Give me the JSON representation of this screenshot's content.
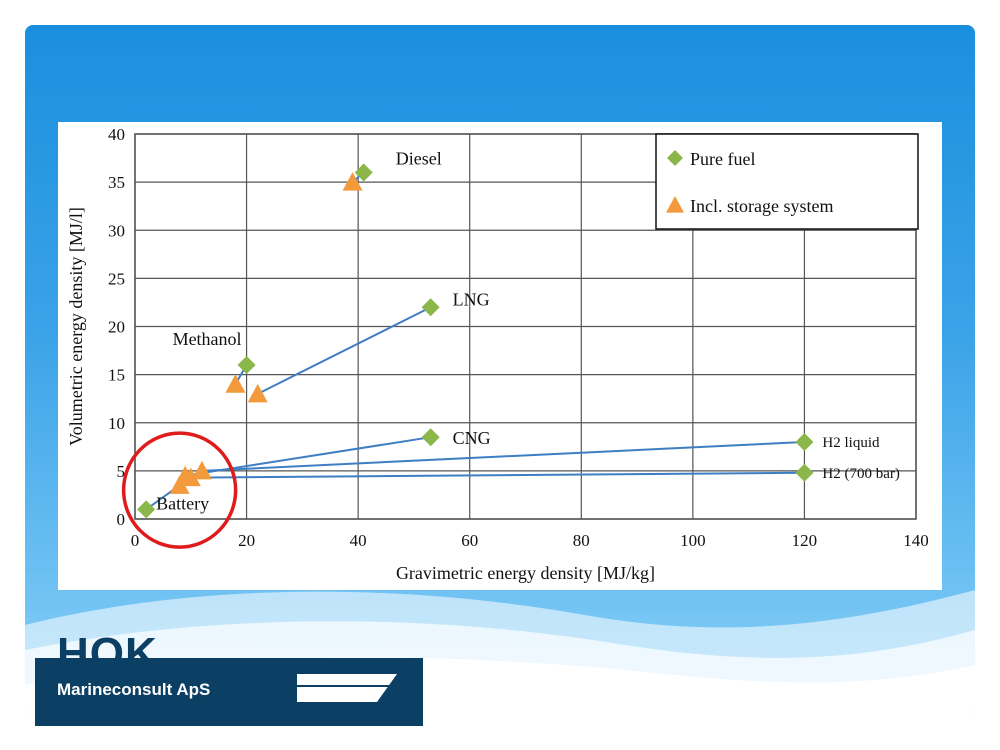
{
  "chart_data": {
    "type": "scatter",
    "xlabel": "Gravimetric energy density [MJ/kg]",
    "ylabel": "Volumetric energy density [MJ/l]",
    "xlim": [
      0,
      140
    ],
    "ylim": [
      0,
      40
    ],
    "xticks": [
      0,
      20,
      40,
      60,
      80,
      100,
      120,
      140
    ],
    "yticks": [
      0,
      5,
      10,
      15,
      20,
      25,
      30,
      35,
      40
    ],
    "grid": true,
    "legend_position": "top-right",
    "series": [
      {
        "name": "Pure  fuel",
        "marker": "diamond",
        "color": "#8ab64a"
      },
      {
        "name": "Incl. storage system",
        "marker": "triangle",
        "color": "#f39a3c"
      }
    ],
    "fuels": [
      {
        "label": "Diesel",
        "pure": [
          41,
          36
        ],
        "storage": [
          39,
          35
        ]
      },
      {
        "label": "LNG",
        "pure": [
          53,
          22
        ],
        "storage": [
          22,
          13
        ]
      },
      {
        "label": "Methanol",
        "pure": [
          20,
          16
        ],
        "storage": [
          18,
          14
        ]
      },
      {
        "label": "CNG",
        "pure": [
          53,
          8.5
        ],
        "storage": [
          9,
          4.5
        ]
      },
      {
        "label": "H2 liquid",
        "pure": [
          120,
          8
        ],
        "storage": [
          12,
          5
        ]
      },
      {
        "label": "H2 (700 bar)",
        "pure": [
          120,
          4.8
        ],
        "storage": [
          10,
          4.3
        ]
      },
      {
        "label": "Battery",
        "pure": [
          2,
          1
        ],
        "storage": [
          8,
          3.5
        ]
      }
    ],
    "line_color": "#3e7ec3",
    "highlight_color": "#e01b1b"
  },
  "logo": {
    "name": "HOK",
    "subtitle": "Marineconsult ApS",
    "color": "#0b3f63"
  }
}
